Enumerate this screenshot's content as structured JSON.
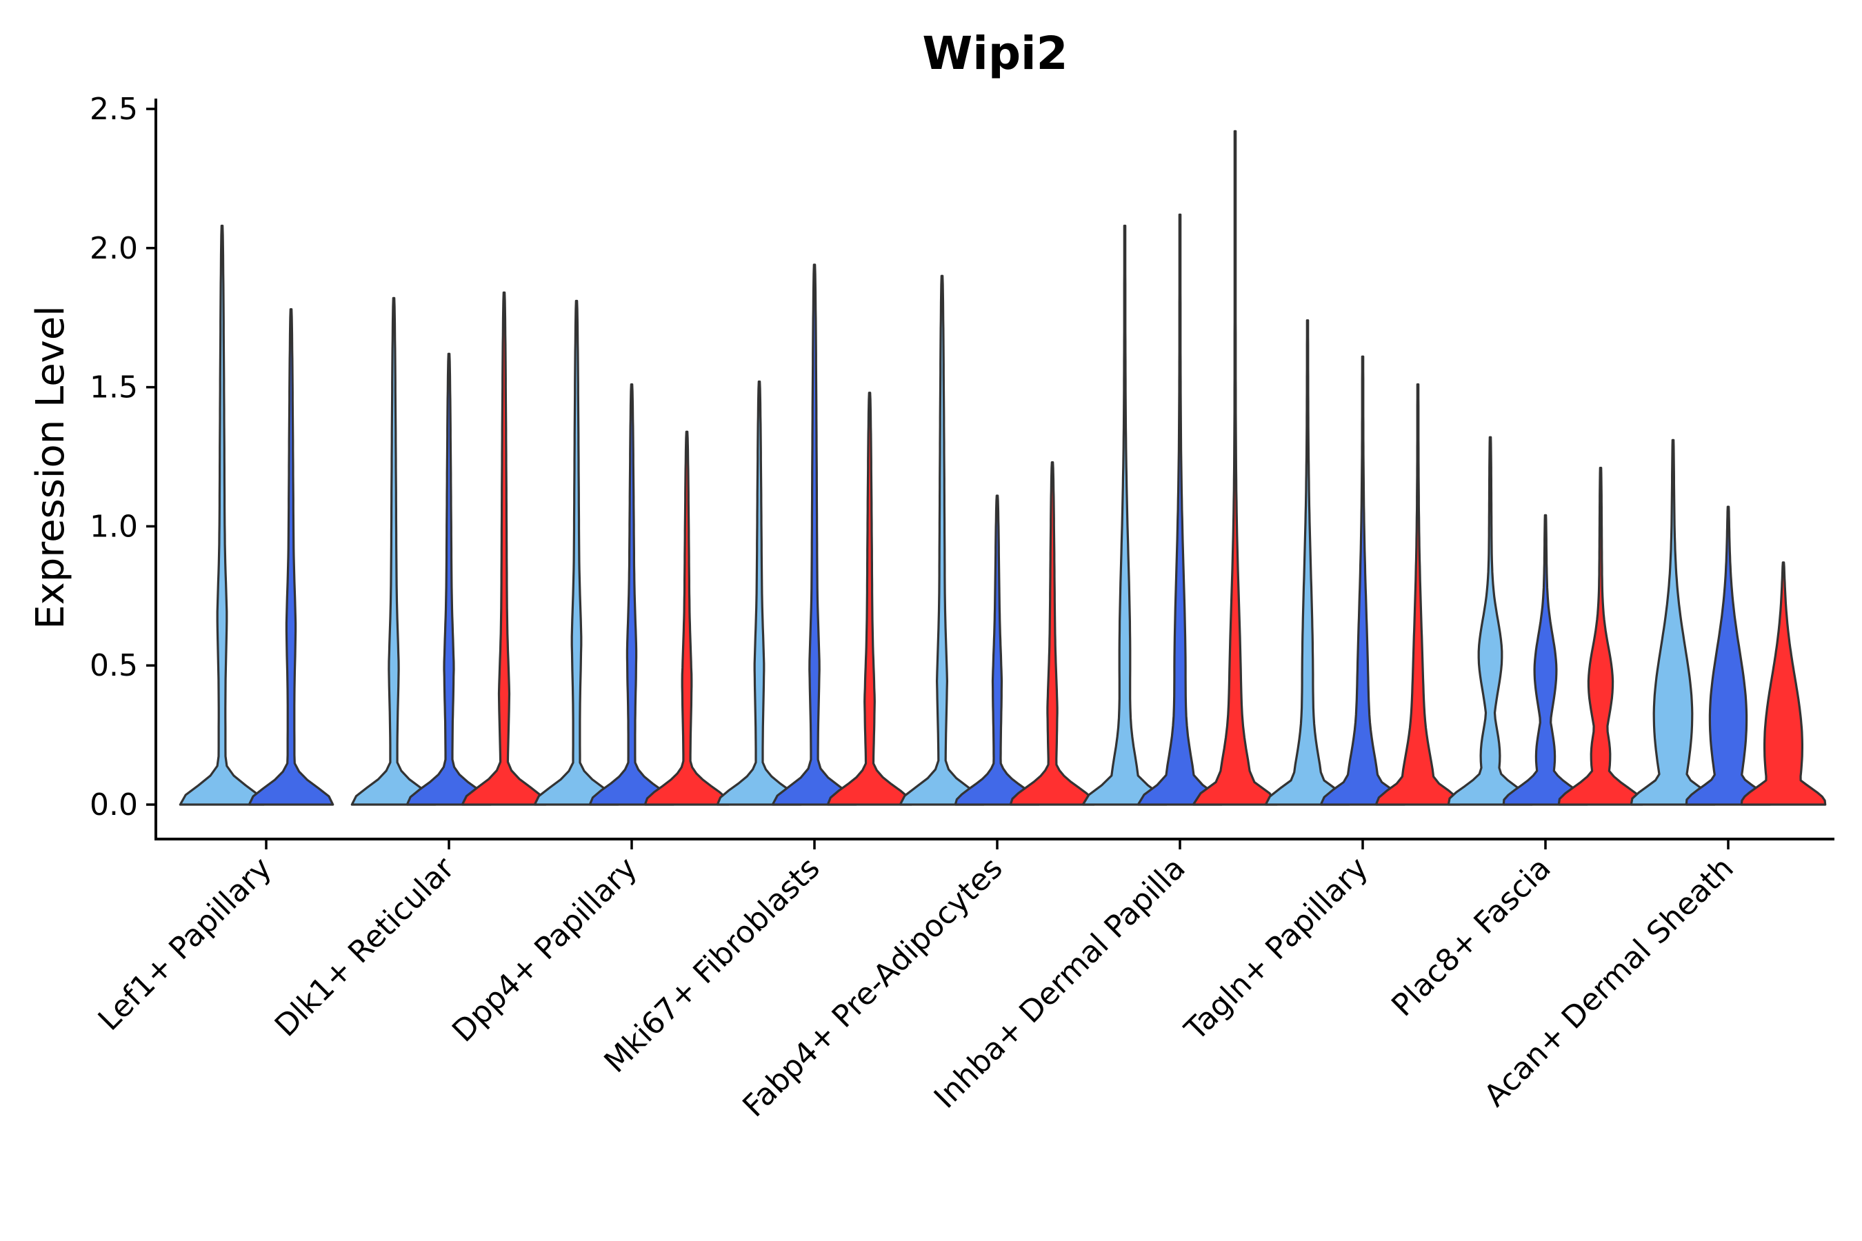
{
  "chart_data": {
    "type": "violin",
    "title": "Wipi2",
    "xlabel": "",
    "ylabel": "Expression Level",
    "ylim": [
      -0.12,
      2.55
    ],
    "yticks": [
      "0.0",
      "0.5",
      "1.0",
      "1.5",
      "2.0",
      "2.5"
    ],
    "categories": [
      "Lef1+ Papillary",
      "Dlk1+ Reticular",
      "Dpp4+ Papillary",
      "Mki67+ Fibroblasts",
      "Fabp4+ Pre-Adipocytes",
      "Inhba+ Dermal Papilla",
      "Tagln+ Papillary",
      "Plac8+ Fascia",
      "Acan+ Dermal Sheath"
    ],
    "series_colors": [
      "#7DBFEE",
      "#4169E8",
      "#FF3030"
    ],
    "groups": [
      {
        "category": "Lef1+ Papillary",
        "violins": [
          {
            "series": 0,
            "max": 2.08,
            "shape": "lowpeak",
            "mid": 0.68
          },
          {
            "series": 1,
            "max": 1.78,
            "shape": "lowpeak",
            "mid": 0.65
          }
        ]
      },
      {
        "category": "Dlk1+ Reticular",
        "violins": [
          {
            "series": 0,
            "max": 1.82,
            "shape": "lowpeak",
            "mid": 0.5
          },
          {
            "series": 1,
            "max": 1.62,
            "shape": "lowpeak",
            "mid": 0.5
          },
          {
            "series": 2,
            "max": 1.84,
            "shape": "lowpeak",
            "mid": 0.4
          }
        ]
      },
      {
        "category": "Dpp4+ Papillary",
        "violins": [
          {
            "series": 0,
            "max": 1.81,
            "shape": "lowpeak",
            "mid": 0.6
          },
          {
            "series": 1,
            "max": 1.51,
            "shape": "lowpeak",
            "mid": 0.55
          },
          {
            "series": 2,
            "max": 1.34,
            "shape": "lowpeak",
            "mid": 0.45
          }
        ]
      },
      {
        "category": "Mki67+ Fibroblasts",
        "violins": [
          {
            "series": 0,
            "max": 1.52,
            "shape": "lowpeak",
            "mid": 0.5
          },
          {
            "series": 1,
            "max": 1.94,
            "shape": "lowpeak",
            "mid": 0.5
          },
          {
            "series": 2,
            "max": 1.48,
            "shape": "lowpeak",
            "mid": 0.38
          }
        ]
      },
      {
        "category": "Fabp4+ Pre-Adipocytes",
        "violins": [
          {
            "series": 0,
            "max": 1.9,
            "shape": "lowpeak",
            "mid": 0.45
          },
          {
            "series": 1,
            "max": 1.11,
            "shape": "lowpeak",
            "mid": 0.45
          },
          {
            "series": 2,
            "max": 1.23,
            "shape": "lowpeak",
            "mid": 0.35
          }
        ]
      },
      {
        "category": "Inhba+ Dermal Papilla",
        "violins": [
          {
            "series": 0,
            "max": 2.08,
            "shape": "broad",
            "mid": 0.9
          },
          {
            "series": 1,
            "max": 2.12,
            "shape": "broad",
            "mid": 0.8
          },
          {
            "series": 2,
            "max": 2.42,
            "shape": "broad",
            "mid": 0.6
          }
        ]
      },
      {
        "category": "Tagln+ Papillary",
        "violins": [
          {
            "series": 0,
            "max": 1.74,
            "shape": "broad",
            "mid": 0.8
          },
          {
            "series": 1,
            "max": 1.61,
            "shape": "broad",
            "mid": 0.6
          },
          {
            "series": 2,
            "max": 1.51,
            "shape": "broad",
            "mid": 0.5
          }
        ]
      },
      {
        "category": "Plac8+ Fascia",
        "violins": [
          {
            "series": 0,
            "max": 1.32,
            "shape": "bimodal",
            "mid": 0.55
          },
          {
            "series": 1,
            "max": 1.04,
            "shape": "bimodal",
            "mid": 0.5
          },
          {
            "series": 2,
            "max": 1.21,
            "shape": "bimodal",
            "mid": 0.45
          }
        ]
      },
      {
        "category": "Acan+ Dermal Sheath",
        "violins": [
          {
            "series": 0,
            "max": 1.31,
            "shape": "wide",
            "mid": 0.6
          },
          {
            "series": 1,
            "max": 1.07,
            "shape": "wide",
            "mid": 0.6
          },
          {
            "series": 2,
            "max": 0.87,
            "shape": "wide",
            "mid": 0.45
          }
        ]
      }
    ]
  }
}
